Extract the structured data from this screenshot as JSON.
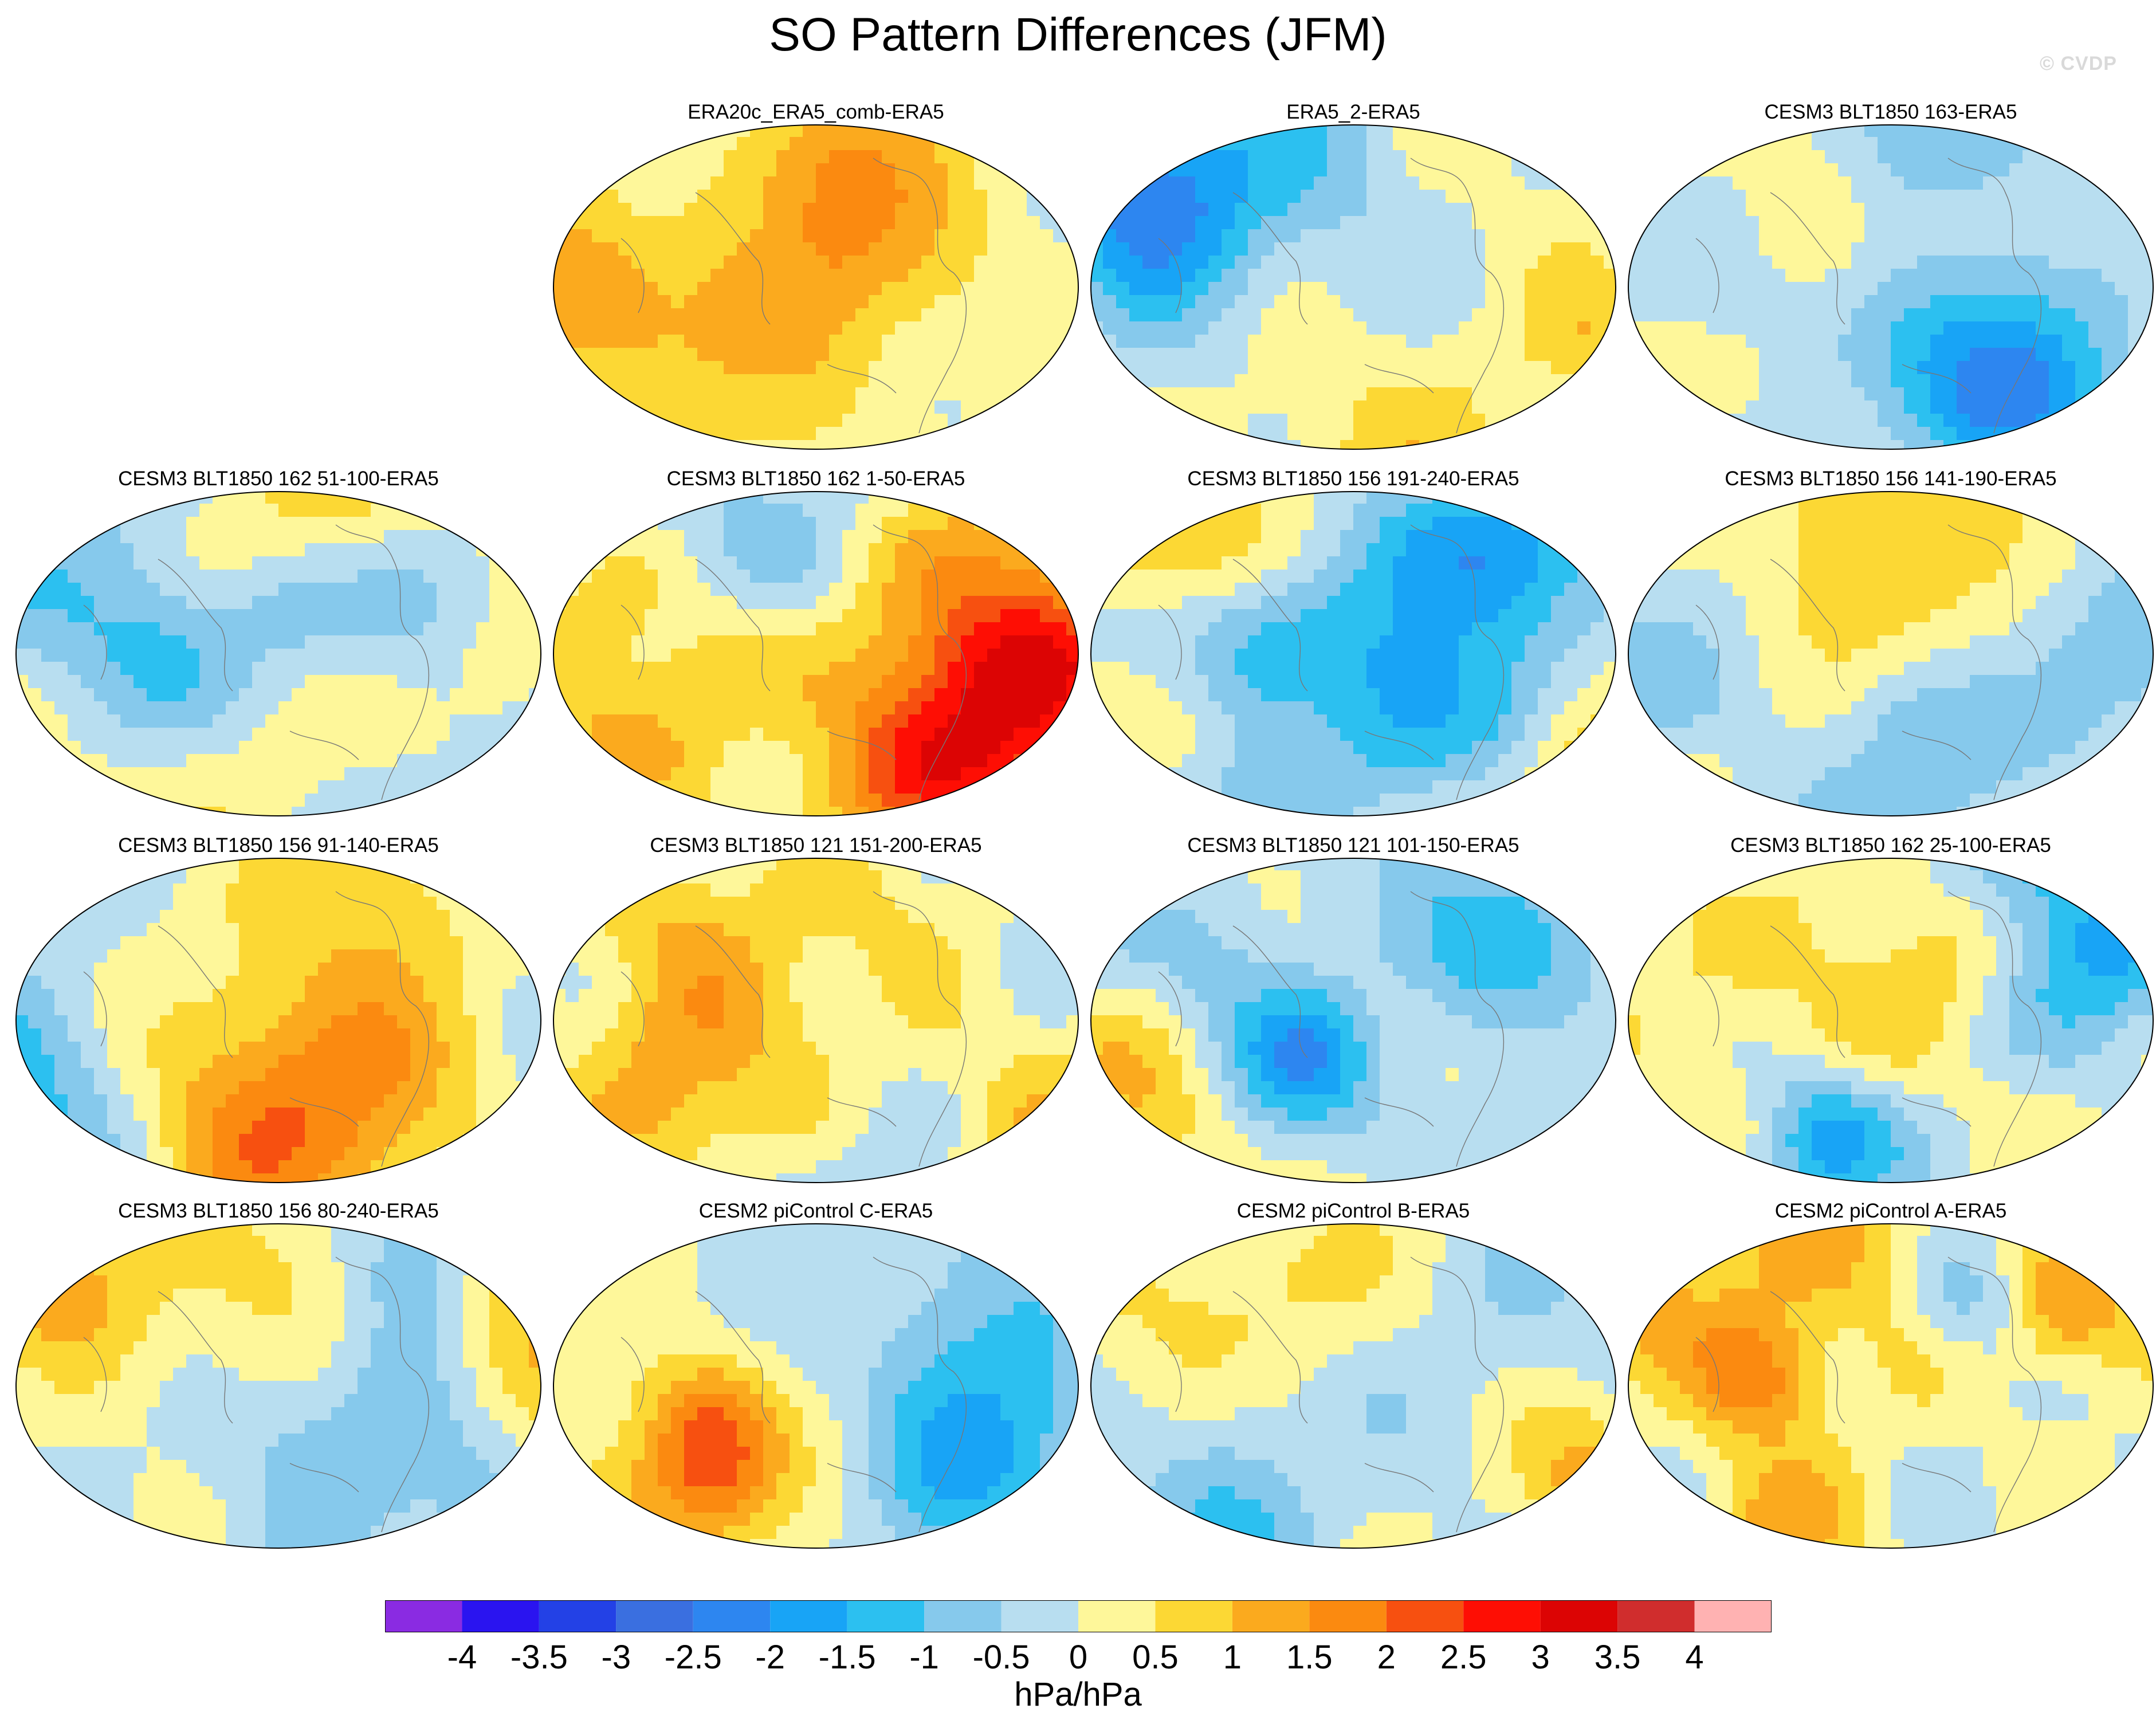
{
  "title": "SO Pattern Differences (JFM)",
  "watermark": "© CVDP",
  "units": "hPa/hPa",
  "chart_data": {
    "type": "heatmap",
    "title": "SO Pattern Differences (JFM)",
    "projection": "Robinson global maps (illustrative fields)",
    "panels": [
      {
        "name": "ERA20c_ERA5_comb-ERA5",
        "seed": 1
      },
      {
        "name": "ERA5_2-ERA5",
        "seed": 2
      },
      {
        "name": "CESM3 BLT1850 163-ERA5",
        "seed": 3
      },
      {
        "name": "CESM3 BLT1850 162 51-100-ERA5",
        "seed": 4
      },
      {
        "name": "CESM3 BLT1850 162 1-50-ERA5",
        "seed": 5
      },
      {
        "name": "CESM3 BLT1850 156 191-240-ERA5",
        "seed": 6
      },
      {
        "name": "CESM3 BLT1850 156 141-190-ERA5",
        "seed": 7
      },
      {
        "name": "CESM3 BLT1850 156 91-140-ERA5",
        "seed": 8
      },
      {
        "name": "CESM3 BLT1850 121 151-200-ERA5",
        "seed": 9
      },
      {
        "name": "CESM3 BLT1850 121 101-150-ERA5",
        "seed": 10
      },
      {
        "name": "CESM3 BLT1850 162 25-100-ERA5",
        "seed": 11
      },
      {
        "name": "CESM3 BLT1850 156 80-240-ERA5",
        "seed": 12
      },
      {
        "name": "CESM2 piControl C-ERA5",
        "seed": 13
      },
      {
        "name": "CESM2 piControl B-ERA5",
        "seed": 14
      },
      {
        "name": "CESM2 piControl A-ERA5",
        "seed": 15
      }
    ],
    "colorbar": {
      "label": "hPa/hPa",
      "ticks": [
        "-4",
        "-3.5",
        "-3",
        "-2.5",
        "-2",
        "-1.5",
        "-1",
        "-0.5",
        "0",
        "0.5",
        "1",
        "1.5",
        "2",
        "2.5",
        "3",
        "3.5",
        "4"
      ],
      "levels": [
        -4,
        -3.5,
        -3,
        -2.5,
        -2,
        -1.5,
        -1,
        -0.5,
        0,
        0.5,
        1,
        1.5,
        2,
        2.5,
        3,
        3.5,
        4
      ],
      "colors": [
        "#8a2be2",
        "#2a14f0",
        "#2341e6",
        "#3a6fe0",
        "#2d86f0",
        "#18a4f6",
        "#2cc0f0",
        "#86c9ec",
        "#b8def0",
        "#fef79a",
        "#fcd834",
        "#fbaa1e",
        "#fb8a10",
        "#f75010",
        "#fe0e04",
        "#dc0404",
        "#d02d2d",
        "#ffb2b2"
      ]
    }
  }
}
